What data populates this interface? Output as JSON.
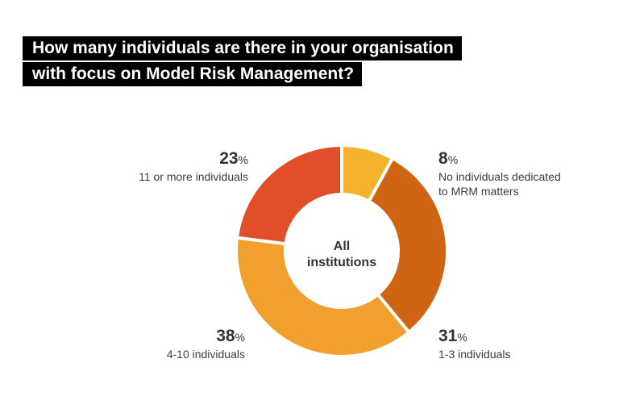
{
  "title": {
    "line1": "How many individuals are there in your organisation",
    "line2": "with focus on Model Risk Management?"
  },
  "center_label": {
    "line1": "All",
    "line2": "institutions"
  },
  "percent_sign": "%",
  "colors": {
    "eleven_plus": "#e04e2a",
    "none": "#f5b32d",
    "one_to_three": "#cf6512",
    "four_to_ten": "#f19f2d"
  },
  "chart_data": {
    "type": "pie",
    "donut": true,
    "title": "How many individuals are there in your organisation with focus on Model Risk Management?",
    "center_text": "All institutions",
    "slices": [
      {
        "label": "No individuals dedicated to MRM matters",
        "value": 8,
        "display": "8",
        "color": "#f5b32d"
      },
      {
        "label": "1-3 individuals",
        "value": 31,
        "display": "31",
        "color": "#cf6512"
      },
      {
        "label": "4-10 individuals",
        "value": 38,
        "display": "38",
        "color": "#f19f2d"
      },
      {
        "label": "11 or more individuals",
        "value": 23,
        "display": "23",
        "color": "#e04e2a"
      }
    ]
  }
}
